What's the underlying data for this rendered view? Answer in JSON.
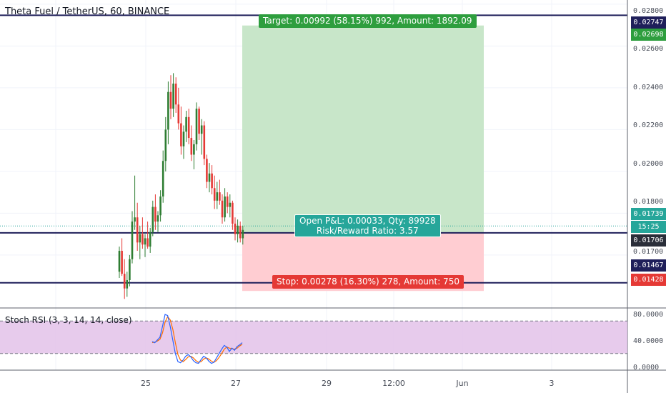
{
  "header": {
    "title": "Theta Fuel / TetherUS, 60, BINANCE"
  },
  "indicator": {
    "title": "Stoch RSI (3, 3, 14, 14, close)"
  },
  "price_axis": {
    "ticks": [
      "0.02800",
      "0.02600",
      "0.02400",
      "0.02200",
      "0.02000",
      "0.01800",
      "0.01700"
    ],
    "labels": {
      "target_line": "0.02747",
      "target_price": "0.02698",
      "current_price": "0.01739",
      "countdown": "15:25",
      "entry_price": "0.01706",
      "stop_line": "0.01467",
      "stop_price": "0.01428"
    }
  },
  "rsi_axis": {
    "ticks": [
      "80.0000",
      "40.0000",
      "0.0000"
    ]
  },
  "time_axis": {
    "ticks": [
      "25",
      "27",
      "29",
      "12:00",
      "Jun",
      "3"
    ]
  },
  "position": {
    "target_label": "Target: 0.00992 (58.15%) 992, Amount: 1892.09",
    "pnl_label": "Open P&L: 0.00033, Qty: 89928",
    "rr_label": "Risk/Reward Ratio: 3.57",
    "stop_label": "Stop: 0.00278 (16.30%) 278, Amount: 750"
  },
  "colors": {
    "up": "#26a69a",
    "down": "#ef5350",
    "candle_up": "#2e7d32",
    "candle_down": "#e53935",
    "target_zone": "#c8e6c9",
    "stop_zone": "#ffcdd2",
    "line": "#1f1f5a",
    "rsi_band": "#e1bee7",
    "k_line": "#2962ff",
    "d_line": "#ff6d00"
  },
  "chart_data": {
    "type": "candlestick",
    "symbol": "Theta Fuel / TetherUS",
    "interval": "60",
    "exchange": "BINANCE",
    "ylim": [
      0.0135,
      0.0282
    ],
    "hlines": [
      0.02747,
      0.01706,
      0.01467
    ],
    "current_price": 0.01739,
    "position": {
      "entry": 0.01706,
      "target": 0.02698,
      "stop": 0.01428
    },
    "candles": [
      [
        0.0152,
        0.0164,
        0.0149,
        0.0162
      ],
      [
        0.0162,
        0.0168,
        0.015,
        0.0151
      ],
      [
        0.0151,
        0.0158,
        0.0139,
        0.0144
      ],
      [
        0.0144,
        0.0152,
        0.014,
        0.0148
      ],
      [
        0.0148,
        0.016,
        0.0145,
        0.0158
      ],
      [
        0.0158,
        0.0181,
        0.0156,
        0.0176
      ],
      [
        0.0176,
        0.0198,
        0.0172,
        0.0178
      ],
      [
        0.0178,
        0.0185,
        0.0162,
        0.0166
      ],
      [
        0.0166,
        0.0174,
        0.0158,
        0.017
      ],
      [
        0.017,
        0.0178,
        0.0163,
        0.0165
      ],
      [
        0.0165,
        0.017,
        0.0159,
        0.0168
      ],
      [
        0.0168,
        0.0176,
        0.0163,
        0.0164
      ],
      [
        0.0164,
        0.0173,
        0.0161,
        0.0171
      ],
      [
        0.0171,
        0.0186,
        0.0169,
        0.0183
      ],
      [
        0.0183,
        0.0189,
        0.0172,
        0.0176
      ],
      [
        0.0176,
        0.0181,
        0.0171,
        0.0179
      ],
      [
        0.0179,
        0.0191,
        0.0176,
        0.0188
      ],
      [
        0.0188,
        0.021,
        0.0185,
        0.0205
      ],
      [
        0.0205,
        0.0226,
        0.02,
        0.022
      ],
      [
        0.022,
        0.0243,
        0.0213,
        0.0238
      ],
      [
        0.0238,
        0.0246,
        0.0225,
        0.023
      ],
      [
        0.023,
        0.0247,
        0.0226,
        0.0242
      ],
      [
        0.0242,
        0.0245,
        0.0228,
        0.0232
      ],
      [
        0.0232,
        0.024,
        0.022,
        0.0223
      ],
      [
        0.0223,
        0.0231,
        0.0208,
        0.0212
      ],
      [
        0.0212,
        0.0222,
        0.0206,
        0.0219
      ],
      [
        0.0219,
        0.0229,
        0.0214,
        0.0226
      ],
      [
        0.0226,
        0.023,
        0.0213,
        0.0216
      ],
      [
        0.0216,
        0.0222,
        0.0205,
        0.0208
      ],
      [
        0.0208,
        0.0215,
        0.0201,
        0.0213
      ],
      [
        0.0213,
        0.0233,
        0.021,
        0.023
      ],
      [
        0.023,
        0.0231,
        0.0215,
        0.0218
      ],
      [
        0.0218,
        0.0225,
        0.0208,
        0.0222
      ],
      [
        0.0222,
        0.0224,
        0.0203,
        0.0206
      ],
      [
        0.0206,
        0.0208,
        0.0192,
        0.0195
      ],
      [
        0.0195,
        0.0204,
        0.019,
        0.0199
      ],
      [
        0.0199,
        0.0203,
        0.0189,
        0.0192
      ],
      [
        0.0192,
        0.0198,
        0.0182,
        0.0186
      ],
      [
        0.0186,
        0.0195,
        0.0182,
        0.019
      ],
      [
        0.019,
        0.0196,
        0.0184,
        0.0186
      ],
      [
        0.0186,
        0.0189,
        0.0175,
        0.0178
      ],
      [
        0.0178,
        0.0192,
        0.0176,
        0.0188
      ],
      [
        0.0188,
        0.019,
        0.018,
        0.0183
      ],
      [
        0.0183,
        0.0189,
        0.0178,
        0.0185
      ],
      [
        0.0185,
        0.0186,
        0.0172,
        0.0175
      ],
      [
        0.0175,
        0.0178,
        0.0167,
        0.017
      ],
      [
        0.017,
        0.0177,
        0.0166,
        0.0174
      ],
      [
        0.0174,
        0.0176,
        0.0166,
        0.0168
      ],
      [
        0.0168,
        0.0174,
        0.0165,
        0.0172
      ]
    ],
    "rsi": {
      "title": "Stoch RSI (3, 3, 14, 14, close)",
      "ylim": [
        0,
        100
      ],
      "bands": [
        80,
        20
      ],
      "k": [
        42,
        40,
        45,
        50,
        70,
        92,
        90,
        70,
        45,
        20,
        5,
        3,
        8,
        15,
        18,
        14,
        7,
        3,
        2,
        9,
        15,
        12,
        6,
        2,
        4,
        12,
        20,
        28,
        35,
        32,
        24,
        30,
        26,
        33,
        36,
        40
      ],
      "d": [
        40,
        41,
        43,
        46,
        58,
        78,
        88,
        82,
        65,
        40,
        18,
        8,
        5,
        9,
        14,
        15,
        12,
        7,
        4,
        5,
        10,
        12,
        10,
        6,
        4,
        7,
        13,
        20,
        28,
        32,
        30,
        29,
        28,
        30,
        34,
        37
      ]
    }
  }
}
